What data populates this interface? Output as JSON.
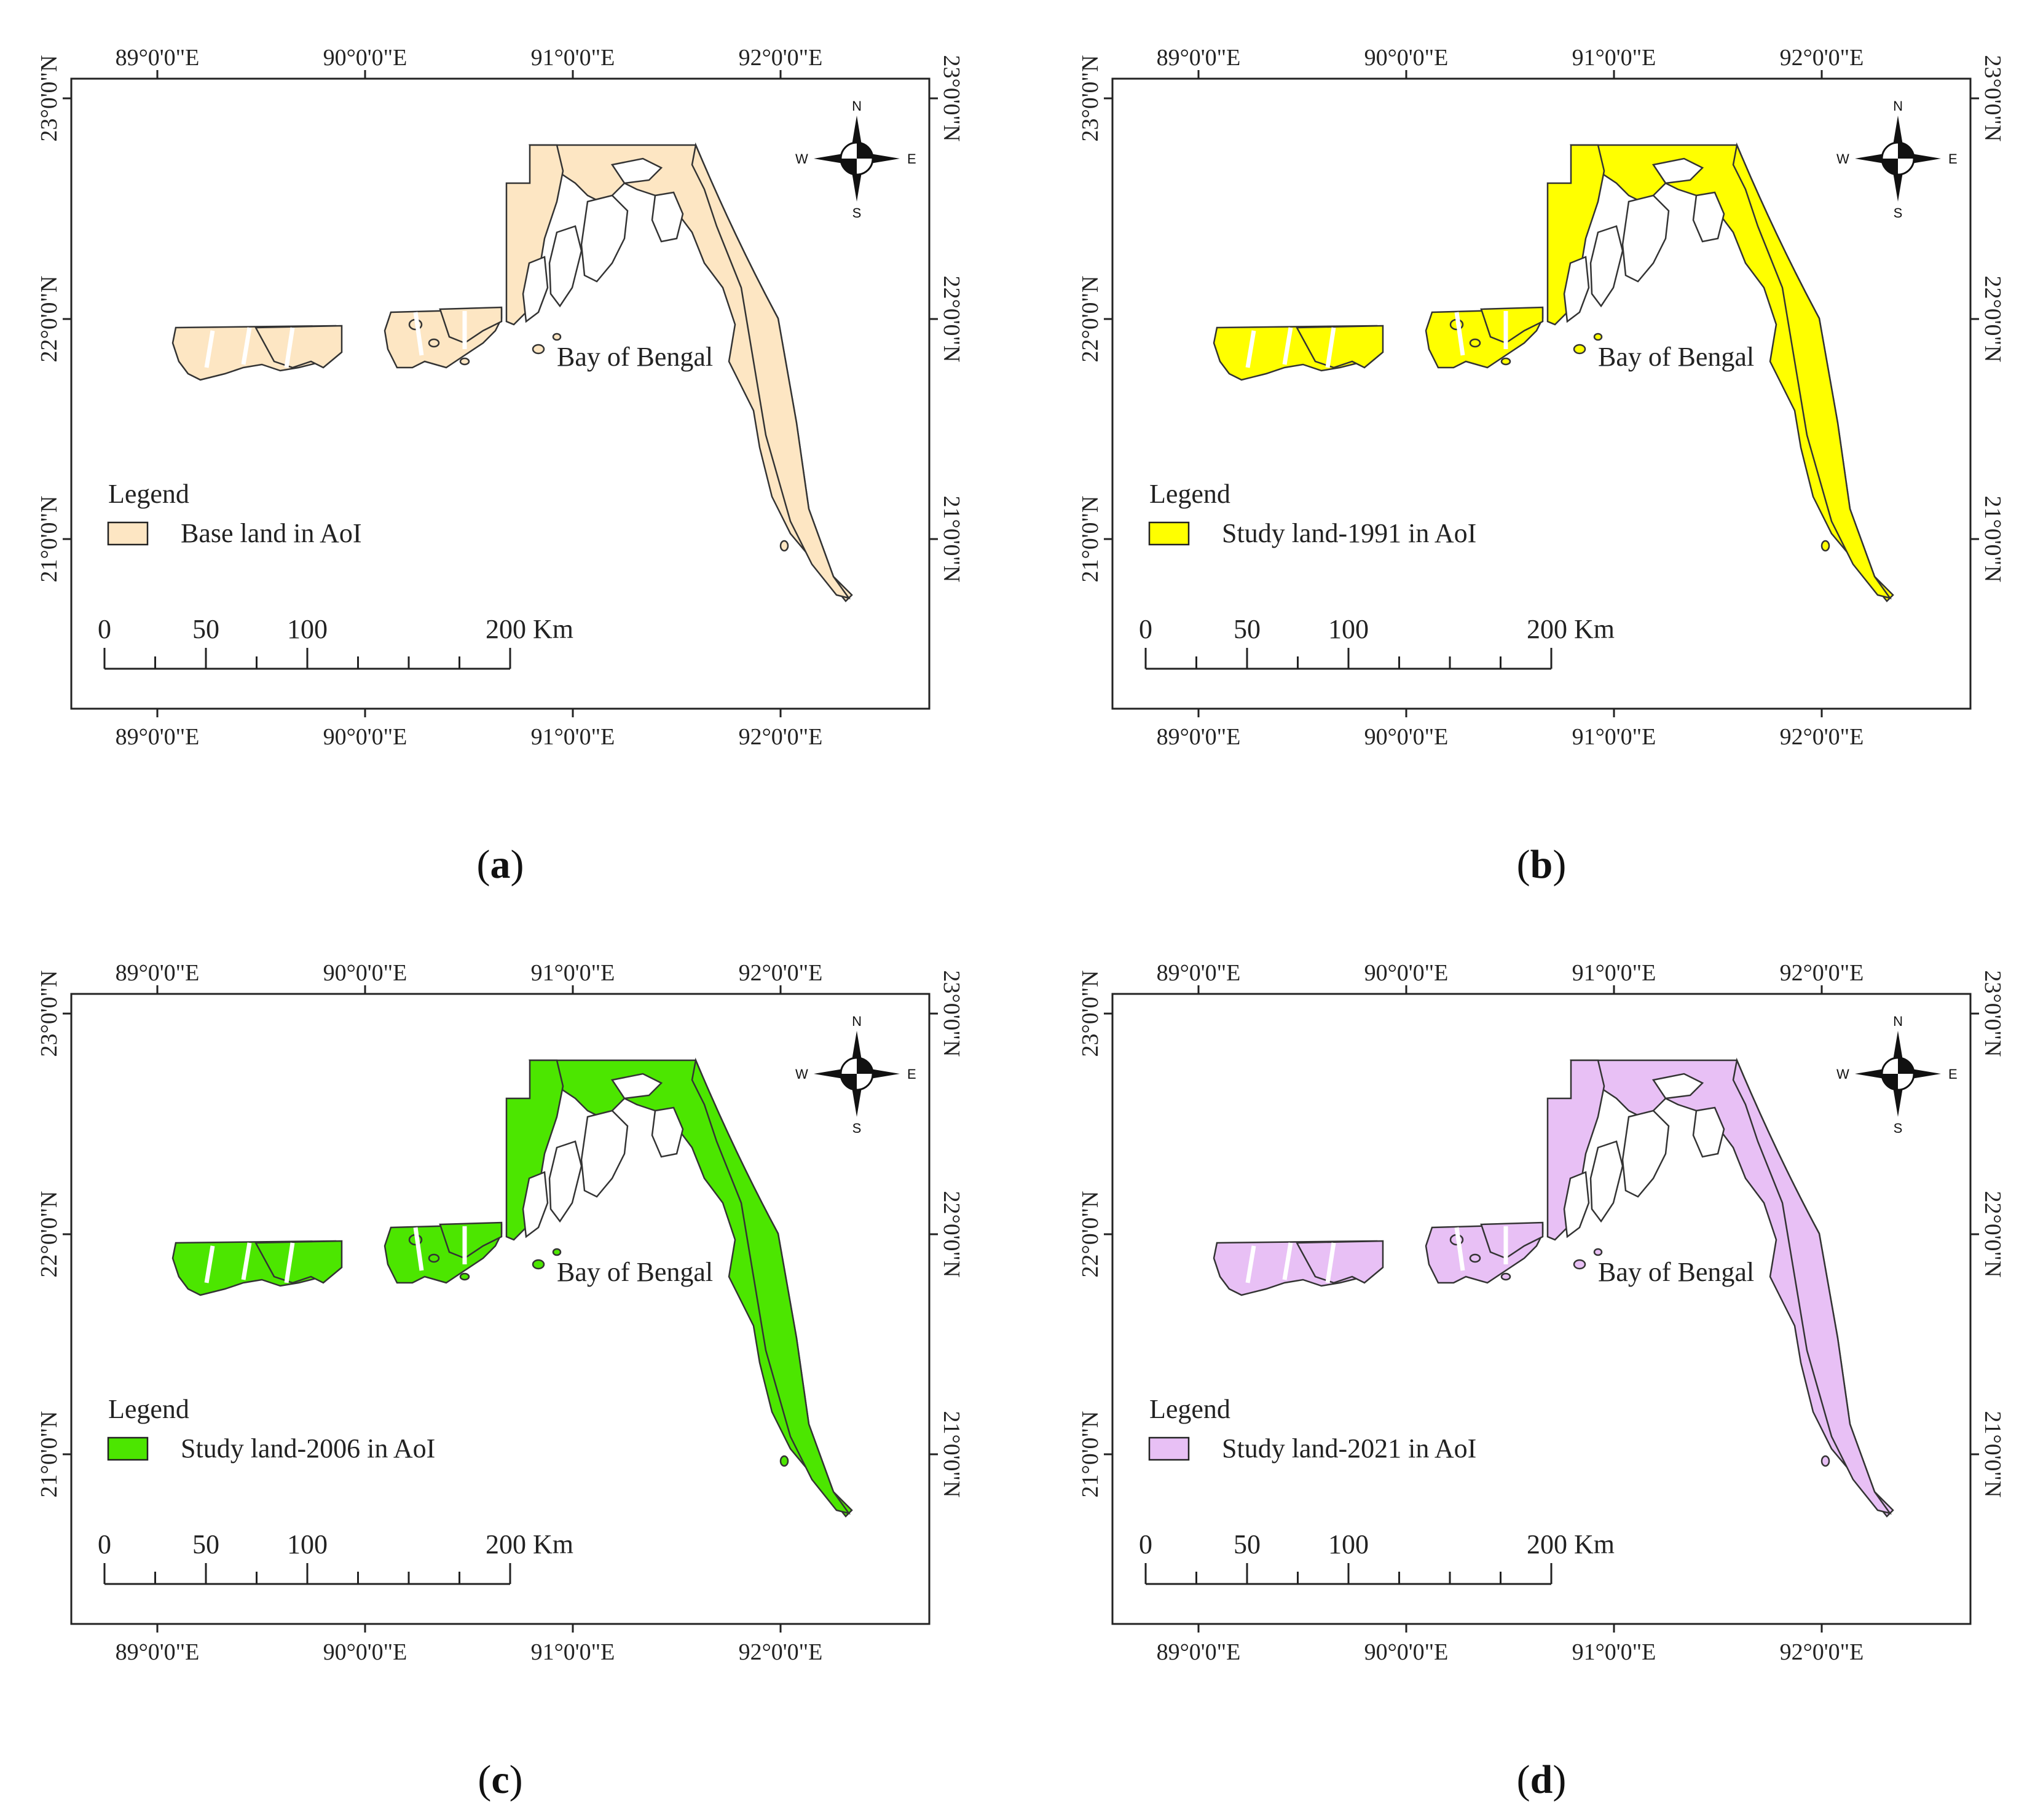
{
  "figure": {
    "panels": [
      {
        "id": "a",
        "caption": "a",
        "legend_title": "Legend",
        "legend_label": "Base land in AoI",
        "fill_color": "#fde6c3",
        "water_label": "Bay of Bengal"
      },
      {
        "id": "b",
        "caption": "b",
        "legend_title": "Legend",
        "legend_label": "Study land-1991 in AoI",
        "fill_color": "#ffff00",
        "water_label": "Bay of Bengal"
      },
      {
        "id": "c",
        "caption": "c",
        "legend_title": "Legend",
        "legend_label": "Study land-2006 in AoI",
        "fill_color": "#4ce600",
        "water_label": "Bay of Bengal"
      },
      {
        "id": "d",
        "caption": "d",
        "legend_title": "Legend",
        "legend_label": "Study land-2021 in AoI",
        "fill_color": "#e8c0f5",
        "water_label": "Bay of Bengal"
      }
    ],
    "lon_ticks": [
      "89°0'0\"E",
      "90°0'0\"E",
      "91°0'0\"E",
      "92°0'0\"E"
    ],
    "lat_ticks": [
      "23°0'0\"N",
      "22°0'0\"N",
      "21°0'0\"N"
    ],
    "scalebar": {
      "labels": [
        "0",
        "50",
        "100",
        "200 Km"
      ]
    },
    "compass": {
      "n": "N",
      "s": "S",
      "e": "E",
      "w": "W"
    },
    "caption_paren_open": "(",
    "caption_paren_close": ")"
  }
}
